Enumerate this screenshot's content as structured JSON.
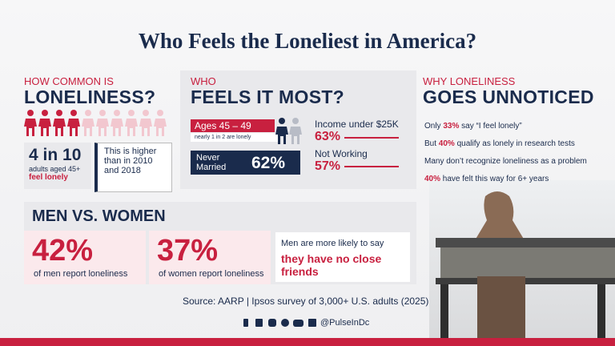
{
  "title": "Who Feels the Loneliest in America?",
  "how_common": {
    "kicker": "HOW COMMON IS",
    "heading": "LONELINESS?",
    "stat": "4 in 10",
    "stat_desc": "adults aged 45+",
    "stat_emphasis": "feel lonely",
    "note": "This is higher than in 2010 and 2018"
  },
  "who": {
    "kicker": "WHO",
    "heading": "FEELS IT MOST?",
    "age_label": "Ages 45 – 49",
    "age_note": "nearly 1 in 2 are lonely",
    "married_label": "Never Married",
    "married_value": "62%",
    "income_label": "Income under $25K",
    "income_value": "63%",
    "working_label": "Not Working",
    "working_value": "57%"
  },
  "why": {
    "kicker": "WHY LONELINESS",
    "heading": "GOES UNNOTICED",
    "items": [
      {
        "pre": "Only",
        "highlight": "33%",
        "post": "say “I feel lonely”"
      },
      {
        "pre": "But",
        "highlight": "40%",
        "post": "qualify as lonely in research tests"
      },
      {
        "pre": "Many don’t recognize loneliness as a problem"
      },
      {
        "highlight": "40%",
        "post": "have felt this way for 6+ years"
      }
    ]
  },
  "gender": {
    "heading": "MEN VS. WOMEN",
    "men_value": "42%",
    "men_label": "of men report loneliness",
    "women_value": "37%",
    "women_label": "of women report loneliness",
    "note": "Men are more likely to say",
    "note_emphasis": "they have no close friends"
  },
  "source": "Source: AARP | Ipsos survey of 3,000+ U.S. adults (2025)",
  "handle": "@PulseInDc"
}
